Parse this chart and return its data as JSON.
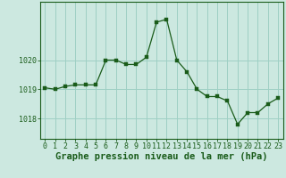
{
  "x": [
    0,
    1,
    2,
    3,
    4,
    5,
    6,
    7,
    8,
    9,
    10,
    11,
    12,
    13,
    14,
    15,
    16,
    17,
    18,
    19,
    20,
    21,
    22,
    23
  ],
  "y": [
    1019.05,
    1019.0,
    1019.1,
    1019.15,
    1019.15,
    1019.15,
    1020.0,
    1020.0,
    1019.85,
    1019.85,
    1020.1,
    1021.3,
    1021.4,
    1020.0,
    1019.6,
    1019.0,
    1018.75,
    1018.75,
    1018.6,
    1017.8,
    1018.2,
    1018.2,
    1018.5,
    1018.7
  ],
  "line_color": "#1a5c1a",
  "marker_color": "#1a5c1a",
  "bg_color": "#cce8e0",
  "grid_color": "#9ecfc4",
  "xlabel": "Graphe pression niveau de la mer (hPa)",
  "xlabel_color": "#1a5c1a",
  "ylabel_ticks": [
    1018,
    1019,
    1020
  ],
  "ylim": [
    1017.3,
    1022.0
  ],
  "xlim": [
    -0.5,
    23.5
  ],
  "xtick_labels": [
    "0",
    "1",
    "2",
    "3",
    "4",
    "5",
    "6",
    "7",
    "8",
    "9",
    "10",
    "11",
    "12",
    "13",
    "14",
    "15",
    "16",
    "17",
    "18",
    "19",
    "20",
    "21",
    "22",
    "23"
  ],
  "label_fontsize": 7.5,
  "tick_fontsize": 6.0
}
